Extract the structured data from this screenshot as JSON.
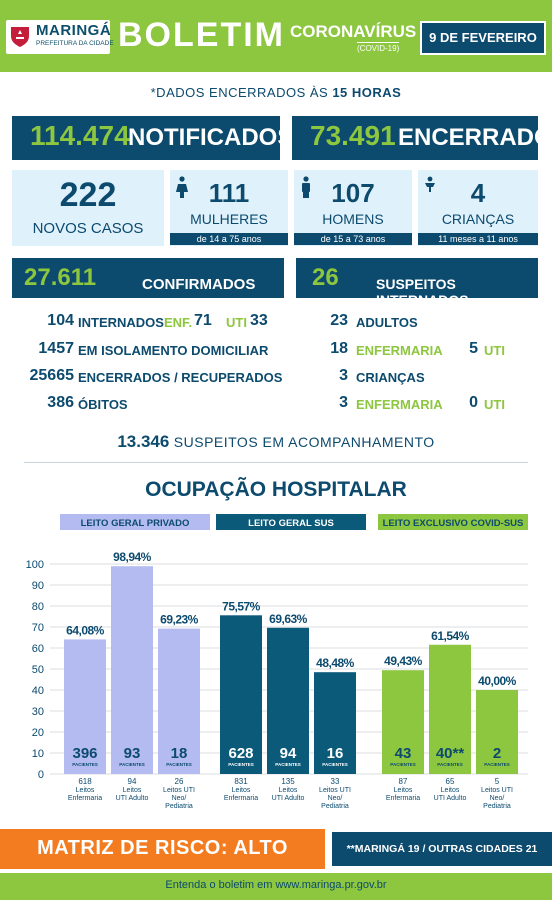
{
  "header": {
    "city": "MARINGÁ",
    "prefeitura": "PREFEITURA DA CIDADE",
    "title": "BOLETIM",
    "corona": "CORONAVÍRUS",
    "covid": "(COVID-19)",
    "date": "9 DE FEVEREIRO"
  },
  "dados": {
    "prefix": "*DADOS ENCERRADOS ÀS ",
    "hour": "15 HORAS"
  },
  "notificados": {
    "num": "114.474",
    "label": "NOTIFICADOS"
  },
  "encerrados": {
    "num": "73.491",
    "label": "ENCERRADOS"
  },
  "novos": {
    "num": "222",
    "label": "NOVOS CASOS"
  },
  "mulheres": {
    "num": "111",
    "label": "MULHERES",
    "range": "de 14 a 75 anos"
  },
  "homens": {
    "num": "107",
    "label": "HOMENS",
    "range": "de 15 a 73 anos"
  },
  "criancas": {
    "num": "4",
    "label": "CRIANÇAS",
    "range": "11 meses a 11 anos"
  },
  "confirmados": {
    "num": "27.611",
    "label": "CONFIRMADOS",
    "internados": {
      "num": "104",
      "label": "INTERNADOS",
      "enf_label": "ENF.",
      "enf": "71",
      "uti_label": "UTI",
      "uti": "33"
    },
    "isolamento": {
      "num": "1457",
      "label": "EM ISOLAMENTO DOMICILIAR"
    },
    "recuperados": {
      "num": "25665",
      "label": "ENCERRADOS / RECUPERADOS"
    },
    "obitos": {
      "num": "386",
      "label": "ÓBITOS"
    }
  },
  "suspeitos": {
    "num": "26",
    "label": "SUSPEITOS INTERNADOS",
    "adultos": {
      "num": "23",
      "label": "ADULTOS"
    },
    "adultos_enf": {
      "num": "18",
      "label": "ENFERMARIA",
      "uti": "5",
      "uti_label": "UTI"
    },
    "criancas": {
      "num": "3",
      "label": "CRIANÇAS"
    },
    "criancas_enf": {
      "num": "3",
      "label": "ENFERMARIA",
      "uti": "0",
      "uti_label": "UTI"
    }
  },
  "acompanhamento": {
    "num": "13.346",
    "label": "SUSPEITOS EM ACOMPANHAMENTO"
  },
  "chart_title": "OCUPAÇÃO HOSPITALAR",
  "chart_data": {
    "type": "bar",
    "title": "OCUPAÇÃO HOSPITALAR",
    "ylim": [
      0,
      100
    ],
    "yticks": [
      "0",
      "10",
      "20",
      "30",
      "40",
      "50",
      "60",
      "70",
      "80",
      "90",
      "100"
    ],
    "grid": true,
    "groups": [
      {
        "name": "LEITO GERAL PRIVADO",
        "color": "#b3bbf0",
        "text": "#0c4a6e",
        "bars": [
          {
            "pct": "64,08%",
            "value": 64.08,
            "patients": "396",
            "beds": "618",
            "label1": "Leitos",
            "label2": "Enfermaria",
            "label3": ""
          },
          {
            "pct": "98,94%",
            "value": 98.94,
            "patients": "93",
            "beds": "94",
            "label1": "Leitos",
            "label2": "UTI Adulto",
            "label3": ""
          },
          {
            "pct": "69,23%",
            "value": 69.23,
            "patients": "18",
            "beds": "26",
            "label1": "Leitos UTI",
            "label2": "Neo/",
            "label3": "Pediatria"
          }
        ]
      },
      {
        "name": "LEITO GERAL SUS",
        "color": "#0c5a7a",
        "text": "#ffffff",
        "bars": [
          {
            "pct": "75,57%",
            "value": 75.57,
            "patients": "628",
            "beds": "831",
            "label1": "Leitos",
            "label2": "Enfermaria",
            "label3": ""
          },
          {
            "pct": "69,63%",
            "value": 69.63,
            "patients": "94",
            "beds": "135",
            "label1": "Leitos",
            "label2": "UTI Adulto",
            "label3": ""
          },
          {
            "pct": "48,48%",
            "value": 48.48,
            "patients": "16",
            "beds": "33",
            "label1": "Leitos UTI",
            "label2": "Neo/",
            "label3": "Pediatria"
          }
        ]
      },
      {
        "name": "LEITO EXCLUSIVO COVID-SUS",
        "color": "#8dc63f",
        "text": "#0c4a6e",
        "bars": [
          {
            "pct": "49,43%",
            "value": 49.43,
            "patients": "43",
            "beds": "87",
            "label1": "Leitos",
            "label2": "Enfermaria",
            "label3": ""
          },
          {
            "pct": "61,54%",
            "value": 61.54,
            "patients": "40**",
            "beds": "65",
            "label1": "Leitos",
            "label2": "UTI Adulto",
            "label3": ""
          },
          {
            "pct": "40,00%",
            "value": 40.0,
            "patients": "2",
            "beds": "5",
            "label1": "Leitos UTI",
            "label2": "Neo/",
            "label3": "Pediatria"
          }
        ]
      }
    ],
    "patients_word": "PACIENTES"
  },
  "matriz": "MATRIZ DE RISCO: ALTO",
  "maringa_note": "**MARINGÁ 19 / OUTRAS CIDADES 21",
  "footer": "Entenda o boletim em www.maringa.pr.gov.br",
  "colors": {
    "navy": "#0c4a6e",
    "green": "#8dc63f",
    "orange": "#f47c20",
    "light": "#dff1fb"
  }
}
